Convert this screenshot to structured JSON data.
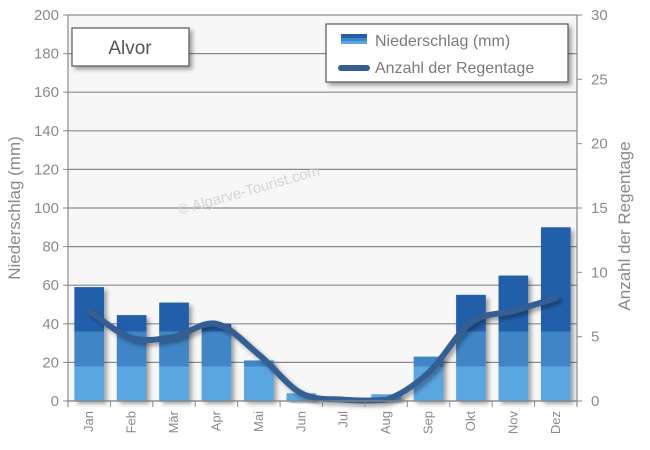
{
  "chart_data": {
    "type": "bar+line",
    "title": "Alvor",
    "watermark": "© Algarve-Tourist.com",
    "categories": [
      "Jan",
      "Feb",
      "Mär",
      "Apr",
      "Mai",
      "Jun",
      "Jul",
      "Aug",
      "Sep",
      "Okt",
      "Nov",
      "Dez"
    ],
    "series": [
      {
        "name": "Niederschlag (mm)",
        "type": "bar",
        "axis": "left",
        "color": "#245eab",
        "values": [
          59,
          44.5,
          51,
          40,
          21,
          4,
          1.5,
          3.5,
          23,
          55,
          65,
          90
        ]
      },
      {
        "name": "Anzahl der Regentage",
        "type": "line",
        "axis": "right",
        "color": "#355f92",
        "values": [
          7,
          4.9,
          5,
          6,
          3.6,
          0.6,
          0.1,
          0.1,
          2.2,
          6.1,
          7,
          8
        ]
      }
    ],
    "ylabel": "Niederschlag (mm)",
    "ylabel_right": "Anzahl der Regentage",
    "ylim": [
      0,
      200
    ],
    "ylim_right": [
      0,
      30
    ],
    "yticks": [
      "0",
      "20",
      "40",
      "60",
      "80",
      "100",
      "120",
      "140",
      "160",
      "180",
      "200"
    ],
    "yticks_right": [
      "0",
      "5",
      "10",
      "15",
      "20",
      "25",
      "30"
    ],
    "grid": true,
    "legend_position": "top-right"
  }
}
